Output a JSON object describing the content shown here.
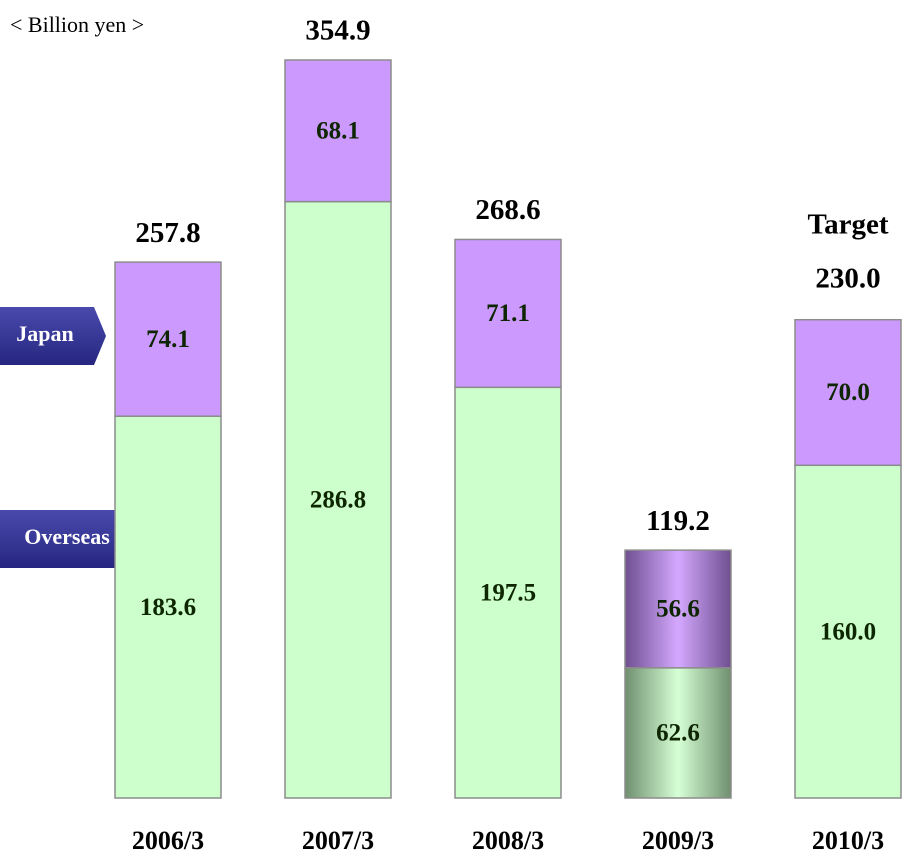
{
  "chart_data": {
    "type": "stacked_bar",
    "unit_label": "< Billion yen >",
    "categories": [
      "2006/3",
      "2007/3",
      "2008/3",
      "2009/3",
      "2010/3"
    ],
    "series": [
      {
        "name": "Overseas",
        "color": "#ccffcc",
        "values": [
          183.6,
          286.8,
          197.5,
          62.6,
          160.0
        ],
        "value_labels": [
          "183.6",
          "286.8",
          "197.5",
          "62.6",
          "160.0"
        ]
      },
      {
        "name": "Japan",
        "color": "#cc99ff",
        "values": [
          74.1,
          68.1,
          71.1,
          56.6,
          70.0
        ],
        "value_labels": [
          "74.1",
          "68.1",
          "71.1",
          "56.6",
          "70.0"
        ]
      }
    ],
    "totals": {
      "values": [
        257.8,
        354.9,
        268.6,
        119.2,
        230.0
      ],
      "value_labels": [
        "257.8",
        "354.9",
        "268.6",
        "119.2",
        "230.0"
      ]
    },
    "annotations": [
      {
        "category": 4,
        "text": "Target"
      }
    ],
    "shaded": [
      false,
      false,
      false,
      true,
      false
    ],
    "legend": "left"
  }
}
